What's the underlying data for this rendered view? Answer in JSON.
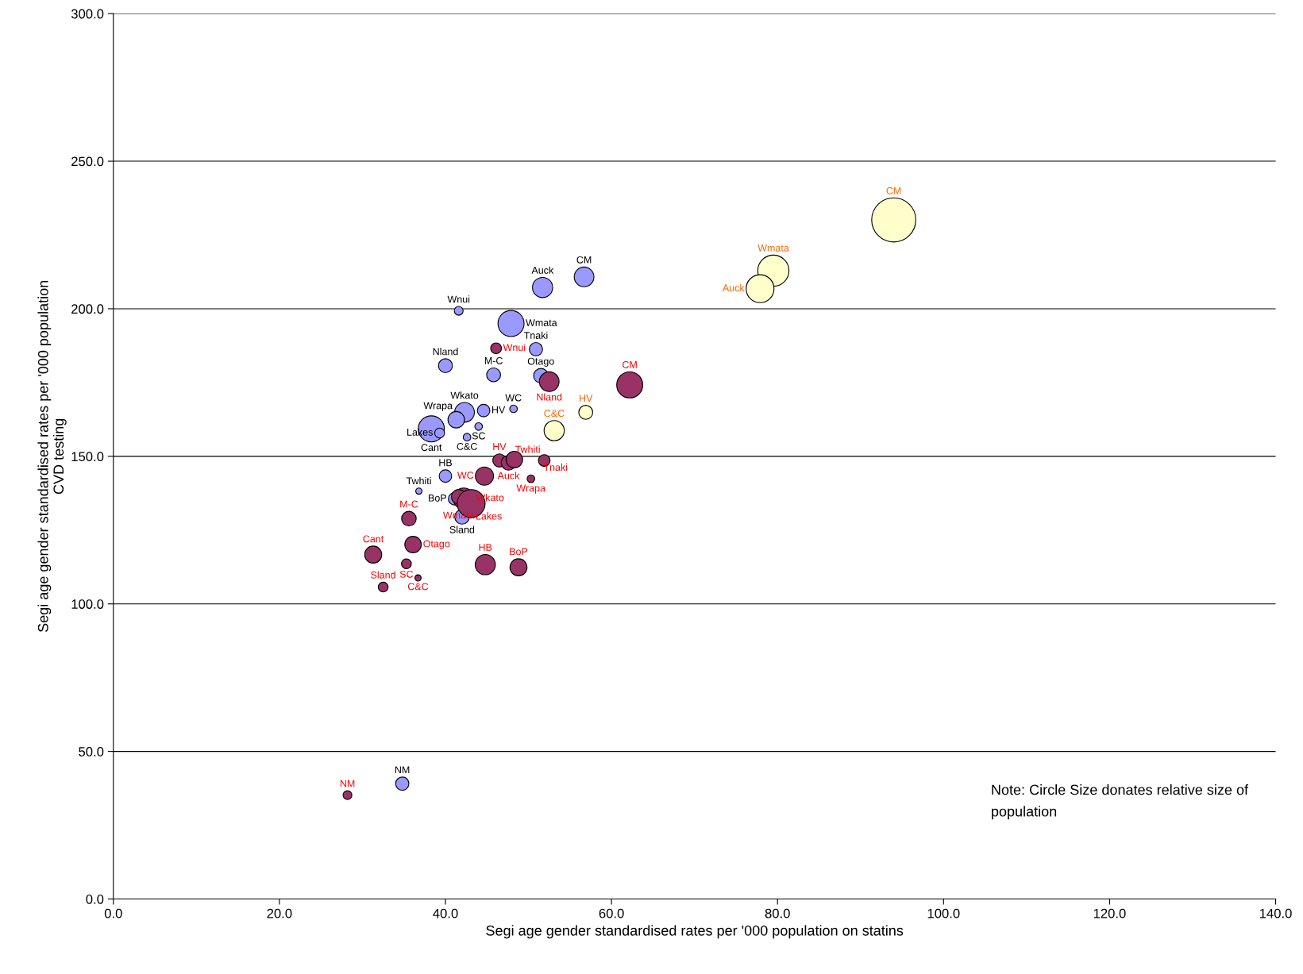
{
  "chart_data": {
    "type": "bubble",
    "xlabel": "Segi age gender standardised rates per '000 population on statins",
    "ylabel": "Segi age gender standardised rates per '000 population\nCVD testing",
    "xlim": [
      0,
      140
    ],
    "ylim": [
      0,
      300
    ],
    "xticks": [
      {
        "value": 0,
        "label": "0.0"
      },
      {
        "value": 20,
        "label": "20.0"
      },
      {
        "value": 40,
        "label": "40.0"
      },
      {
        "value": 60,
        "label": "60.0"
      },
      {
        "value": 80,
        "label": "80.0"
      },
      {
        "value": 100,
        "label": "100.0"
      },
      {
        "value": 120,
        "label": "120.0"
      },
      {
        "value": 140,
        "label": "140.0"
      }
    ],
    "yticks": [
      {
        "value": 0,
        "label": "0.0"
      },
      {
        "value": 50,
        "label": "50.0"
      },
      {
        "value": 100,
        "label": "100.0"
      },
      {
        "value": 150,
        "label": "150.0"
      },
      {
        "value": 200,
        "label": "200.0"
      },
      {
        "value": 250,
        "label": "250.0"
      },
      {
        "value": 300,
        "label": "300.0"
      }
    ],
    "grid": "y",
    "legend": false,
    "annotations": [
      "Note: Circle Size donates relative size of population"
    ],
    "series": [
      {
        "color": "#9999ff",
        "x": [
          51.7,
          56.7,
          41.6,
          47.9,
          40.0,
          50.9,
          45.8,
          51.5,
          42.3,
          44.0,
          48.2,
          44.6,
          41.3,
          38.3,
          39.3,
          42.6,
          40.0,
          36.8,
          42.0,
          41.1,
          34.8
        ],
        "values": [
          207.2,
          210.8,
          199.3,
          195.0,
          180.7,
          186.3,
          177.6,
          177.3,
          164.9,
          160.1,
          166.1,
          165.5,
          162.4,
          159.3,
          157.9,
          156.5,
          143.3,
          138.2,
          129.5,
          135.6,
          39.1
        ],
        "sizes": [
          0.21,
          0.2,
          0.04,
          0.35,
          0.1,
          0.09,
          0.1,
          0.11,
          0.2,
          0.03,
          0.03,
          0.08,
          0.14,
          0.35,
          0.05,
          0.03,
          0.08,
          0.02,
          0.11,
          0.08,
          0.09
        ],
        "value_labels": [
          "Auck",
          "CM",
          "Wnui",
          "Wmata",
          "Nland",
          "Tnaki",
          "M-C",
          "Otago",
          "Wkato",
          "SC",
          "WC",
          "HV",
          "Wrapa",
          "Cant",
          "Lakes",
          "C&C",
          "HB",
          "Twhiti",
          "Sland",
          "BoP",
          "NM"
        ]
      },
      {
        "color": "#993366",
        "x": [
          46.1,
          52.5,
          62.2,
          46.5,
          47.6,
          48.3,
          51.9,
          44.7,
          50.3,
          42.2,
          41.6,
          43.1,
          35.6,
          31.3,
          36.1,
          36.7,
          35.3,
          48.8,
          44.8,
          32.5,
          28.2
        ],
        "values": [
          186.6,
          175.3,
          174.2,
          148.6,
          147.8,
          148.9,
          148.6,
          143.3,
          142.4,
          135.7,
          136.3,
          134.0,
          128.9,
          116.7,
          120.1,
          108.8,
          113.6,
          112.4,
          113.3,
          105.7,
          35.2
        ],
        "sizes": [
          0.06,
          0.2,
          0.35,
          0.09,
          0.11,
          0.14,
          0.07,
          0.17,
          0.03,
          0.23,
          0.11,
          0.4,
          0.11,
          0.15,
          0.14,
          0.02,
          0.05,
          0.15,
          0.21,
          0.05,
          0.04
        ],
        "value_labels": [
          "Wnui",
          "Nland",
          "CM",
          "HV",
          "Auck",
          "Twhiti",
          "Tnaki",
          "WC",
          "Wrapa",
          "Wkato",
          "Wmata",
          "Lakes",
          "M-C",
          "Cant",
          "Otago",
          "C&C",
          "SC",
          "BoP",
          "HB",
          "Sland",
          "NM"
        ]
      },
      {
        "color": "#ffffcc",
        "x": [
          94.0,
          79.5,
          77.9,
          56.9,
          53.1
        ],
        "values": [
          230.1,
          212.9,
          206.8,
          164.9,
          158.7
        ],
        "sizes": [
          1,
          0.5,
          0.4,
          0.1,
          0.21
        ],
        "value_labels": [
          "CM",
          "Wmata",
          "Auck",
          "HV",
          "C&C"
        ]
      }
    ]
  }
}
